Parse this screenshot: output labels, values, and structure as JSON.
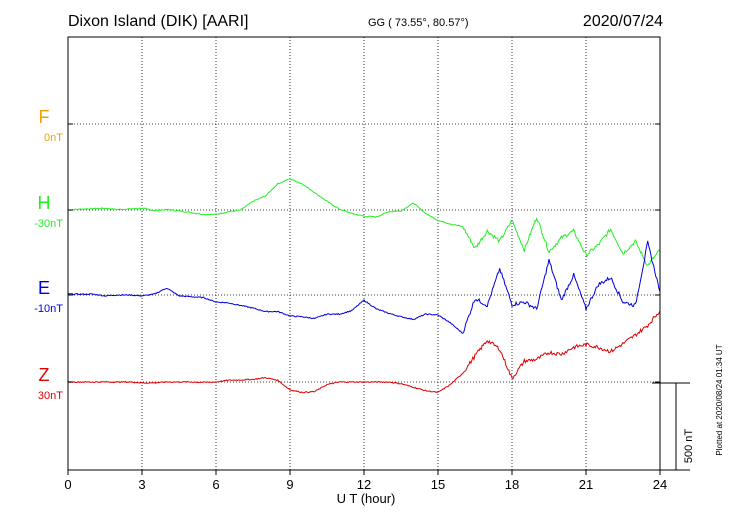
{
  "header": {
    "station": "Dixon Island (DIK)  [AARI]",
    "coords": "GG ( 73.55°,  80.57°)",
    "date": "2020/07/24"
  },
  "footer": {
    "plotted": "Plotted at 2020/08/24 01:34 UT",
    "scale_label": "500 nT"
  },
  "colors": {
    "F": "#f0a000",
    "H": "#22ee22",
    "E": "#0000dd",
    "Z": "#dd0000"
  },
  "chart_data": {
    "type": "line",
    "xlabel": "U T (hour)",
    "xlim": [
      0,
      24
    ],
    "xticks": [
      "0",
      "3",
      "6",
      "9",
      "12",
      "15",
      "18",
      "21",
      "24"
    ],
    "scale_bar_nT": 500,
    "channels": [
      {
        "name": "F",
        "baseline_label": "0nT",
        "color": "#f0a000",
        "values": []
      },
      {
        "name": "H",
        "baseline_label": "-30nT",
        "color": "#22ee22",
        "x": [
          0,
          0.5,
          1,
          1.5,
          2,
          2.5,
          3,
          3.5,
          4,
          4.5,
          5,
          5.5,
          6,
          6.5,
          7,
          7.5,
          8,
          8.5,
          9,
          9.5,
          10,
          10.5,
          11,
          11.5,
          12,
          12.5,
          13,
          13.5,
          14,
          14.5,
          15,
          15.5,
          16,
          16.5,
          17,
          17.5,
          18,
          18.5,
          19,
          19.5,
          20,
          20.5,
          21,
          21.5,
          22,
          22.5,
          23,
          23.5,
          24
        ],
        "values": [
          0,
          5,
          8,
          10,
          3,
          6,
          10,
          -3,
          2,
          -5,
          -15,
          -25,
          -25,
          -10,
          0,
          50,
          80,
          150,
          180,
          150,
          100,
          50,
          5,
          -20,
          -35,
          -40,
          -10,
          -5,
          40,
          -20,
          -60,
          -80,
          -95,
          -220,
          -120,
          -180,
          -60,
          -230,
          -40,
          -240,
          -160,
          -120,
          -260,
          -200,
          -110,
          -250,
          -180,
          -320,
          -230
        ]
      },
      {
        "name": "E",
        "baseline_label": "-10nT",
        "color": "#0000dd",
        "x": [
          0,
          0.5,
          1,
          1.5,
          2,
          2.5,
          3,
          3.5,
          4,
          4.5,
          5,
          5.5,
          6,
          6.5,
          7,
          7.5,
          8,
          8.5,
          9,
          9.5,
          10,
          10.5,
          11,
          11.5,
          12,
          12.5,
          13,
          13.5,
          14,
          14.5,
          15,
          15.5,
          16,
          16.5,
          17,
          17.5,
          18,
          18.5,
          19,
          19.5,
          20,
          20.5,
          21,
          21.5,
          22,
          22.5,
          23,
          23.5,
          24
        ],
        "values": [
          5,
          5,
          5,
          -5,
          0,
          0,
          -5,
          5,
          40,
          -5,
          -10,
          -15,
          -40,
          -45,
          -60,
          -75,
          -95,
          -95,
          -120,
          -125,
          -135,
          -110,
          -110,
          -90,
          -30,
          -80,
          -105,
          -125,
          -140,
          -110,
          -115,
          -160,
          -220,
          -20,
          -60,
          150,
          -55,
          -40,
          -80,
          200,
          -30,
          115,
          -80,
          60,
          100,
          -40,
          -60,
          300,
          20
        ]
      },
      {
        "name": "Z",
        "baseline_label": "30nT",
        "color": "#dd0000",
        "x": [
          0,
          0.5,
          1,
          1.5,
          2,
          2.5,
          3,
          3.5,
          4,
          4.5,
          5,
          5.5,
          6,
          6.5,
          7,
          7.5,
          8,
          8.5,
          9,
          9.5,
          10,
          10.5,
          11,
          11.5,
          12,
          12.5,
          13,
          13.5,
          14,
          14.5,
          15,
          15.5,
          16,
          16.5,
          17,
          17.5,
          18,
          18.5,
          19,
          19.5,
          20,
          20.5,
          21,
          21.5,
          22,
          22.5,
          23,
          23.5,
          24
        ],
        "values": [
          0,
          0,
          0,
          0,
          0,
          0,
          -5,
          -5,
          0,
          0,
          0,
          -2,
          0,
          10,
          12,
          15,
          25,
          10,
          -45,
          -60,
          -55,
          -15,
          0,
          0,
          0,
          0,
          0,
          -10,
          -30,
          -50,
          -60,
          -15,
          50,
          150,
          240,
          190,
          20,
          120,
          130,
          170,
          160,
          200,
          215,
          200,
          175,
          220,
          270,
          325,
          410
        ]
      }
    ]
  }
}
